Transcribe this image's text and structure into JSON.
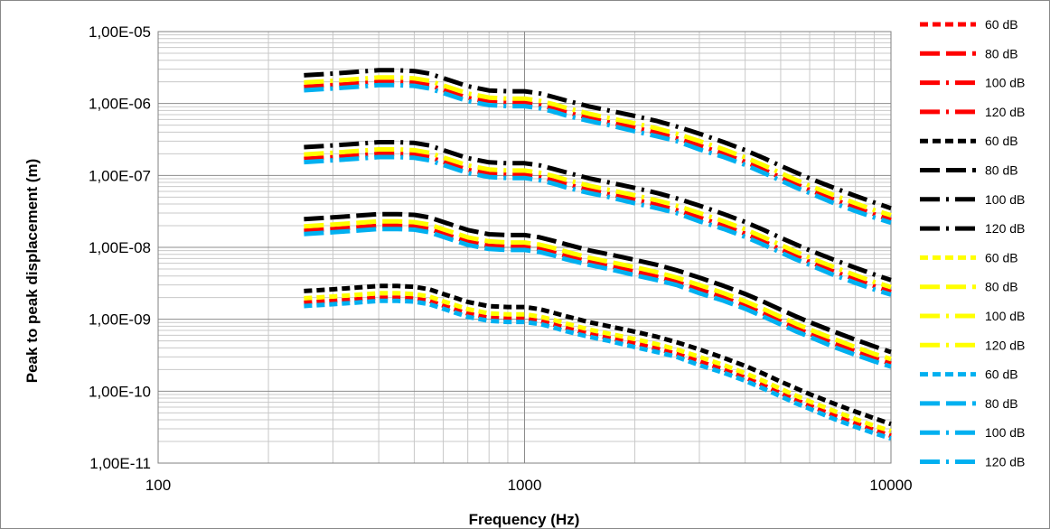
{
  "chart_data": {
    "type": "line",
    "title": "",
    "xlabel": "Frequency (Hz)",
    "ylabel": "Peak to peak displacement (m)",
    "x_scale": "log",
    "y_scale": "log",
    "xlim": [
      100,
      10000
    ],
    "ylim": [
      1e-11,
      1e-05
    ],
    "grid": true,
    "legend_position": "right",
    "x_tick_labels": [
      "100",
      "1000",
      "10000"
    ],
    "y_tick_labels": [
      "1,00E-11",
      "1,00E-10",
      "1,00E-09",
      "1,00E-08",
      "1,00E-07",
      "1,00E-06",
      "1,00E-05"
    ],
    "line_styles": {
      "60 dB": "short-dash",
      "80 dB": "long-dash",
      "100 dB": "long-dash-dot",
      "120 dB": "long-dash-dot"
    },
    "groups": [
      {
        "color": "#ff0000",
        "factor": 1.0
      },
      {
        "color": "#000000",
        "factor": 1.45
      },
      {
        "color": "#ffff00",
        "factor": 1.15
      },
      {
        "color": "#00b0f0",
        "factor": 0.9
      }
    ],
    "x": [
      250,
      300,
      350,
      400,
      450,
      500,
      550,
      600,
      700,
      800,
      900,
      1000,
      1100,
      1200,
      1300,
      1500,
      1700,
      2000,
      2300,
      2600,
      3000,
      3500,
      4000,
      4500,
      5000,
      5500,
      6000,
      7000,
      8000,
      9000,
      10000
    ],
    "series": [
      {
        "name": "60 dB",
        "color": "#ff0000",
        "values": [
          1.7e-09,
          1.8e-09,
          1.9e-09,
          2e-09,
          2e-09,
          1.95e-09,
          1.8e-09,
          1.55e-09,
          1.2e-09,
          1.05e-09,
          1.02e-09,
          1.02e-09,
          9.5e-10,
          8.5e-10,
          7.6e-10,
          6.3e-10,
          5.5e-10,
          4.6e-10,
          3.9e-10,
          3.3e-10,
          2.6e-10,
          2e-10,
          1.55e-10,
          1.2e-10,
          9.4e-11,
          7.6e-11,
          6.3e-11,
          4.6e-11,
          3.6e-11,
          2.9e-11,
          2.4e-11
        ]
      },
      {
        "name": "80 dB",
        "color": "#ff0000",
        "values": [
          1.7e-08,
          1.8e-08,
          1.9e-08,
          2e-08,
          2e-08,
          1.95e-08,
          1.8e-08,
          1.55e-08,
          1.2e-08,
          1.05e-08,
          1.02e-08,
          1.02e-08,
          9.5e-09,
          8.5e-09,
          7.6e-09,
          6.3e-09,
          5.5e-09,
          4.6e-09,
          3.9e-09,
          3.3e-09,
          2.6e-09,
          2e-09,
          1.55e-09,
          1.2e-09,
          9.4e-10,
          7.6e-10,
          6.3e-10,
          4.6e-10,
          3.6e-10,
          2.9e-10,
          2.4e-10
        ]
      },
      {
        "name": "100 dB",
        "color": "#ff0000",
        "values": [
          1.7e-07,
          1.8e-07,
          1.9e-07,
          2e-07,
          2e-07,
          1.95e-07,
          1.8e-07,
          1.55e-07,
          1.2e-07,
          1.05e-07,
          1.02e-07,
          1.02e-07,
          9.5e-08,
          8.5e-08,
          7.6e-08,
          6.3e-08,
          5.5e-08,
          4.6e-08,
          3.9e-08,
          3.3e-08,
          2.6e-08,
          2e-08,
          1.55e-08,
          1.2e-08,
          9.4e-09,
          7.6e-09,
          6.3e-09,
          4.6e-09,
          3.6e-09,
          2.9e-09,
          2.4e-09
        ]
      },
      {
        "name": "120 dB",
        "color": "#ff0000",
        "values": [
          1.7e-06,
          1.8e-06,
          1.9e-06,
          2e-06,
          2e-06,
          1.95e-06,
          1.8e-06,
          1.55e-06,
          1.2e-06,
          1.05e-06,
          1.02e-06,
          1.02e-06,
          9.5e-07,
          8.5e-07,
          7.6e-07,
          6.3e-07,
          5.5e-07,
          4.6e-07,
          3.9e-07,
          3.3e-07,
          2.6e-07,
          2e-07,
          1.55e-07,
          1.2e-07,
          9.4e-08,
          7.6e-08,
          6.3e-08,
          4.6e-08,
          3.6e-08,
          2.9e-08,
          2.4e-08
        ]
      },
      {
        "name": "60 dB",
        "color": "#000000",
        "values": [
          2.47e-09,
          2.61e-09,
          2.76e-09,
          2.9e-09,
          2.9e-09,
          2.83e-09,
          2.61e-09,
          2.25e-09,
          1.74e-09,
          1.52e-09,
          1.48e-09,
          1.48e-09,
          1.38e-09,
          1.23e-09,
          1.1e-09,
          9.1e-10,
          8e-10,
          6.7e-10,
          5.7e-10,
          4.8e-10,
          3.8e-10,
          2.9e-10,
          2.25e-10,
          1.74e-10,
          1.36e-10,
          1.1e-10,
          9.1e-11,
          6.7e-11,
          5.2e-11,
          4.2e-11,
          3.5e-11
        ]
      },
      {
        "name": "80 dB",
        "color": "#000000",
        "values": [
          2.47e-08,
          2.61e-08,
          2.76e-08,
          2.9e-08,
          2.9e-08,
          2.83e-08,
          2.61e-08,
          2.25e-08,
          1.74e-08,
          1.52e-08,
          1.48e-08,
          1.48e-08,
          1.38e-08,
          1.23e-08,
          1.1e-08,
          9.1e-09,
          8e-09,
          6.7e-09,
          5.7e-09,
          4.8e-09,
          3.8e-09,
          2.9e-09,
          2.25e-09,
          1.74e-09,
          1.36e-09,
          1.1e-09,
          9.1e-10,
          6.7e-10,
          5.2e-10,
          4.2e-10,
          3.5e-10
        ]
      },
      {
        "name": "100 dB",
        "color": "#000000",
        "values": [
          2.47e-07,
          2.61e-07,
          2.76e-07,
          2.9e-07,
          2.9e-07,
          2.83e-07,
          2.61e-07,
          2.25e-07,
          1.74e-07,
          1.52e-07,
          1.48e-07,
          1.48e-07,
          1.38e-07,
          1.23e-07,
          1.1e-07,
          9.1e-08,
          8e-08,
          6.7e-08,
          5.7e-08,
          4.8e-08,
          3.8e-08,
          2.9e-08,
          2.25e-08,
          1.74e-08,
          1.36e-08,
          1.1e-08,
          9.1e-09,
          6.7e-09,
          5.2e-09,
          4.2e-09,
          3.5e-09
        ]
      },
      {
        "name": "120 dB",
        "color": "#000000",
        "values": [
          2.47e-06,
          2.61e-06,
          2.76e-06,
          2.9e-06,
          2.9e-06,
          2.83e-06,
          2.61e-06,
          2.25e-06,
          1.74e-06,
          1.52e-06,
          1.48e-06,
          1.48e-06,
          1.38e-06,
          1.23e-06,
          1.1e-06,
          9.1e-07,
          8e-07,
          6.7e-07,
          5.7e-07,
          4.8e-07,
          3.8e-07,
          2.9e-07,
          2.25e-07,
          1.74e-07,
          1.36e-07,
          1.1e-07,
          9.1e-08,
          6.7e-08,
          5.2e-08,
          4.2e-08,
          3.5e-08
        ]
      },
      {
        "name": "60 dB",
        "color": "#ffff00",
        "values": [
          1.96e-09,
          2.07e-09,
          2.19e-09,
          2.3e-09,
          2.3e-09,
          2.24e-09,
          2.07e-09,
          1.78e-09,
          1.38e-09,
          1.21e-09,
          1.17e-09,
          1.17e-09,
          1.09e-09,
          9.8e-10,
          8.7e-10,
          7.2e-10,
          6.3e-10,
          5.3e-10,
          4.5e-10,
          3.8e-10,
          3e-10,
          2.3e-10,
          1.78e-10,
          1.38e-10,
          1.08e-10,
          8.7e-11,
          7.2e-11,
          5.3e-11,
          4.1e-11,
          3.3e-11,
          2.8e-11
        ]
      },
      {
        "name": "80 dB",
        "color": "#ffff00",
        "values": [
          1.96e-08,
          2.07e-08,
          2.19e-08,
          2.3e-08,
          2.3e-08,
          2.24e-08,
          2.07e-08,
          1.78e-08,
          1.38e-08,
          1.21e-08,
          1.17e-08,
          1.17e-08,
          1.09e-08,
          9.8e-09,
          8.7e-09,
          7.2e-09,
          6.3e-09,
          5.3e-09,
          4.5e-09,
          3.8e-09,
          3e-09,
          2.3e-09,
          1.78e-09,
          1.38e-09,
          1.08e-09,
          8.7e-10,
          7.2e-10,
          5.3e-10,
          4.1e-10,
          3.3e-10,
          2.8e-10
        ]
      },
      {
        "name": "100 dB",
        "color": "#ffff00",
        "values": [
          1.96e-07,
          2.07e-07,
          2.19e-07,
          2.3e-07,
          2.3e-07,
          2.24e-07,
          2.07e-07,
          1.78e-07,
          1.38e-07,
          1.21e-07,
          1.17e-07,
          1.17e-07,
          1.09e-07,
          9.8e-08,
          8.7e-08,
          7.2e-08,
          6.3e-08,
          5.3e-08,
          4.5e-08,
          3.8e-08,
          3e-08,
          2.3e-08,
          1.78e-08,
          1.38e-08,
          1.08e-08,
          8.7e-09,
          7.2e-09,
          5.3e-09,
          4.1e-09,
          3.3e-09,
          2.8e-09
        ]
      },
      {
        "name": "120 dB",
        "color": "#ffff00",
        "values": [
          1.96e-06,
          2.07e-06,
          2.19e-06,
          2.3e-06,
          2.3e-06,
          2.24e-06,
          2.07e-06,
          1.78e-06,
          1.38e-06,
          1.21e-06,
          1.17e-06,
          1.17e-06,
          1.09e-06,
          9.8e-07,
          8.7e-07,
          7.2e-07,
          6.3e-07,
          5.3e-07,
          4.5e-07,
          3.8e-07,
          3e-07,
          2.3e-07,
          1.78e-07,
          1.38e-07,
          1.08e-07,
          8.7e-08,
          7.2e-08,
          5.3e-08,
          4.1e-08,
          3.3e-08,
          2.8e-08
        ]
      },
      {
        "name": "60 dB",
        "color": "#00b0f0",
        "values": [
          1.53e-09,
          1.62e-09,
          1.71e-09,
          1.8e-09,
          1.8e-09,
          1.76e-09,
          1.62e-09,
          1.4e-09,
          1.08e-09,
          9.5e-10,
          9.2e-10,
          9.2e-10,
          8.6e-10,
          7.7e-10,
          6.8e-10,
          5.7e-10,
          5e-10,
          4.1e-10,
          3.5e-10,
          3e-10,
          2.3e-10,
          1.8e-10,
          1.4e-10,
          1.08e-10,
          8.5e-11,
          6.8e-11,
          5.7e-11,
          4.1e-11,
          3.2e-11,
          2.6e-11,
          2.2e-11
        ]
      },
      {
        "name": "80 dB",
        "color": "#00b0f0",
        "values": [
          1.53e-08,
          1.62e-08,
          1.71e-08,
          1.8e-08,
          1.8e-08,
          1.76e-08,
          1.62e-08,
          1.4e-08,
          1.08e-08,
          9.5e-09,
          9.2e-09,
          9.2e-09,
          8.6e-09,
          7.7e-09,
          6.8e-09,
          5.7e-09,
          5e-09,
          4.1e-09,
          3.5e-09,
          3e-09,
          2.3e-09,
          1.8e-09,
          1.4e-09,
          1.08e-09,
          8.5e-10,
          6.8e-10,
          5.7e-10,
          4.1e-10,
          3.2e-10,
          2.6e-10,
          2.2e-10
        ]
      },
      {
        "name": "100 dB",
        "color": "#00b0f0",
        "values": [
          1.53e-07,
          1.62e-07,
          1.71e-07,
          1.8e-07,
          1.8e-07,
          1.76e-07,
          1.62e-07,
          1.4e-07,
          1.08e-07,
          9.5e-08,
          9.2e-08,
          9.2e-08,
          8.6e-08,
          7.7e-08,
          6.8e-08,
          5.7e-08,
          5e-08,
          4.1e-08,
          3.5e-08,
          3e-08,
          2.3e-08,
          1.8e-08,
          1.4e-08,
          1.08e-08,
          8.5e-09,
          6.8e-09,
          5.7e-09,
          4.1e-09,
          3.2e-09,
          2.6e-09,
          2.2e-09
        ]
      },
      {
        "name": "120 dB",
        "color": "#00b0f0",
        "values": [
          1.53e-06,
          1.62e-06,
          1.71e-06,
          1.8e-06,
          1.8e-06,
          1.76e-06,
          1.62e-06,
          1.4e-06,
          1.08e-06,
          9.5e-07,
          9.2e-07,
          9.2e-07,
          8.6e-07,
          7.7e-07,
          6.8e-07,
          5.7e-07,
          5e-07,
          4.1e-07,
          3.5e-07,
          3e-07,
          2.3e-07,
          1.8e-07,
          1.4e-07,
          1.08e-07,
          8.5e-08,
          6.8e-08,
          5.7e-08,
          4.1e-08,
          3.2e-08,
          2.6e-08,
          2.2e-08
        ]
      }
    ]
  }
}
